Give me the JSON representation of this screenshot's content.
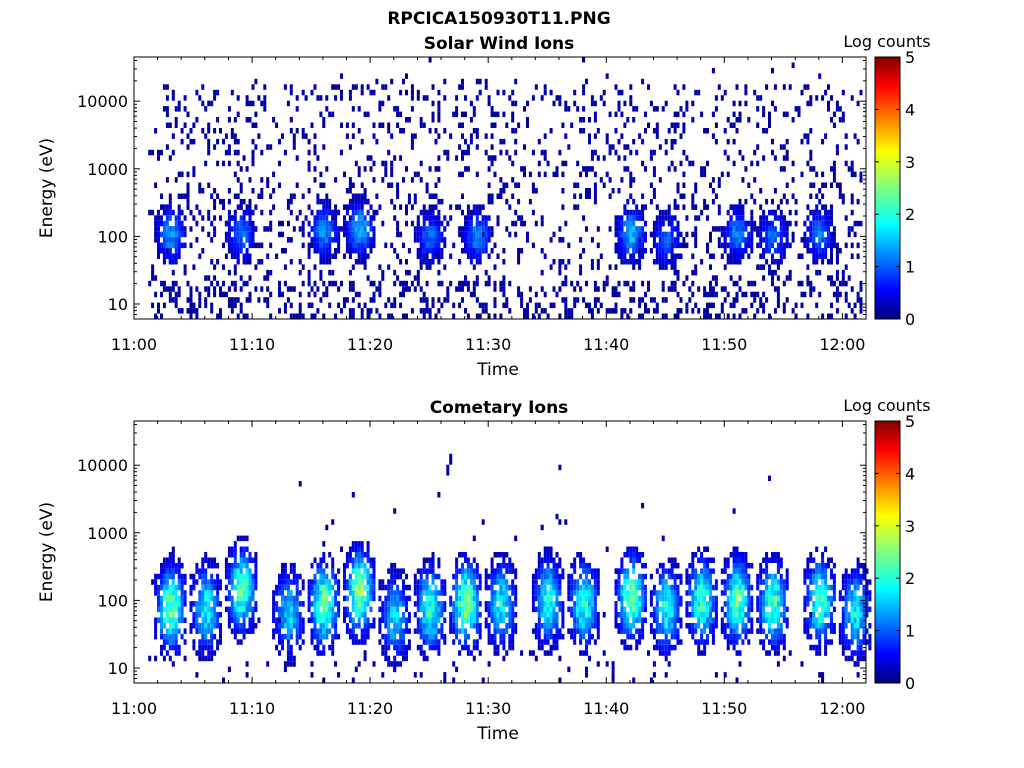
{
  "figure_title": "RPCICA150930T11.PNG",
  "chart_data": [
    {
      "type": "heatmap",
      "title": "Solar Wind Ions",
      "xlabel": "Time",
      "ylabel": "Energy (eV)",
      "xticks": [
        "11:00",
        "11:10",
        "11:20",
        "11:30",
        "11:40",
        "11:50",
        "12:00"
      ],
      "xlim": [
        "11:00",
        "12:02"
      ],
      "yscale": "log",
      "yticks": [
        "10",
        "100",
        "1000",
        "10000"
      ],
      "ylim": [
        6,
        45000
      ],
      "colorbar": {
        "label": "Log counts",
        "ticks": [
          "0",
          "1",
          "2",
          "3",
          "4",
          "5"
        ],
        "range": [
          0,
          5
        ],
        "colormap": "jet"
      },
      "bursts": [
        {
          "t": "11:03",
          "peak_energy": 100,
          "log_counts": 1.5
        },
        {
          "t": "11:09",
          "peak_energy": 100,
          "log_counts": 1.2
        },
        {
          "t": "11:16",
          "peak_energy": 110,
          "log_counts": 1.4
        },
        {
          "t": "11:19",
          "peak_energy": 120,
          "log_counts": 1.6
        },
        {
          "t": "11:25",
          "peak_energy": 90,
          "log_counts": 1.2
        },
        {
          "t": "11:29",
          "peak_energy": 90,
          "log_counts": 1.3
        },
        {
          "t": "11:42",
          "peak_energy": 100,
          "log_counts": 1.6
        },
        {
          "t": "11:45",
          "peak_energy": 80,
          "log_counts": 1.1
        },
        {
          "t": "11:51",
          "peak_energy": 100,
          "log_counts": 1.3
        },
        {
          "t": "11:54",
          "peak_energy": 90,
          "log_counts": 1.2
        },
        {
          "t": "11:58",
          "peak_energy": 100,
          "log_counts": 1.2
        }
      ],
      "background": "sparse 0–1 log counts from 10 eV to ~20000 eV"
    },
    {
      "type": "heatmap",
      "title": "Cometary Ions",
      "xlabel": "Time",
      "ylabel": "Energy (eV)",
      "xticks": [
        "11:00",
        "11:10",
        "11:20",
        "11:30",
        "11:40",
        "11:50",
        "12:00"
      ],
      "xlim": [
        "11:00",
        "12:02"
      ],
      "yscale": "log",
      "yticks": [
        "10",
        "100",
        "1000",
        "10000"
      ],
      "ylim": [
        6,
        45000
      ],
      "colorbar": {
        "label": "Log counts",
        "ticks": [
          "0",
          "1",
          "2",
          "3",
          "4",
          "5"
        ],
        "range": [
          0,
          5
        ],
        "colormap": "jet"
      },
      "bursts": [
        {
          "t": "11:03",
          "peak_energy": 70,
          "log_counts": 2.6
        },
        {
          "t": "11:06",
          "peak_energy": 70,
          "log_counts": 2.0
        },
        {
          "t": "11:09",
          "peak_energy": 130,
          "log_counts": 2.4
        },
        {
          "t": "11:13",
          "peak_energy": 60,
          "log_counts": 1.8
        },
        {
          "t": "11:16",
          "peak_energy": 80,
          "log_counts": 2.6
        },
        {
          "t": "11:19",
          "peak_energy": 120,
          "log_counts": 2.8
        },
        {
          "t": "11:22",
          "peak_energy": 50,
          "log_counts": 1.7
        },
        {
          "t": "11:25",
          "peak_energy": 70,
          "log_counts": 2.3
        },
        {
          "t": "11:28",
          "peak_energy": 80,
          "log_counts": 2.8
        },
        {
          "t": "11:31",
          "peak_energy": 80,
          "log_counts": 2.0
        },
        {
          "t": "11:35",
          "peak_energy": 90,
          "log_counts": 2.1
        },
        {
          "t": "11:38",
          "peak_energy": 80,
          "log_counts": 2.2
        },
        {
          "t": "11:42",
          "peak_energy": 100,
          "log_counts": 2.6
        },
        {
          "t": "11:45",
          "peak_energy": 70,
          "log_counts": 2.1
        },
        {
          "t": "11:48",
          "peak_energy": 90,
          "log_counts": 2.4
        },
        {
          "t": "11:51",
          "peak_energy": 90,
          "log_counts": 2.5
        },
        {
          "t": "11:54",
          "peak_energy": 80,
          "log_counts": 2.4
        },
        {
          "t": "11:58",
          "peak_energy": 90,
          "log_counts": 2.4
        },
        {
          "t": "12:01",
          "peak_energy": 60,
          "log_counts": 2.0
        }
      ],
      "background": "sparse isolated counts up to ~10000 eV"
    }
  ]
}
